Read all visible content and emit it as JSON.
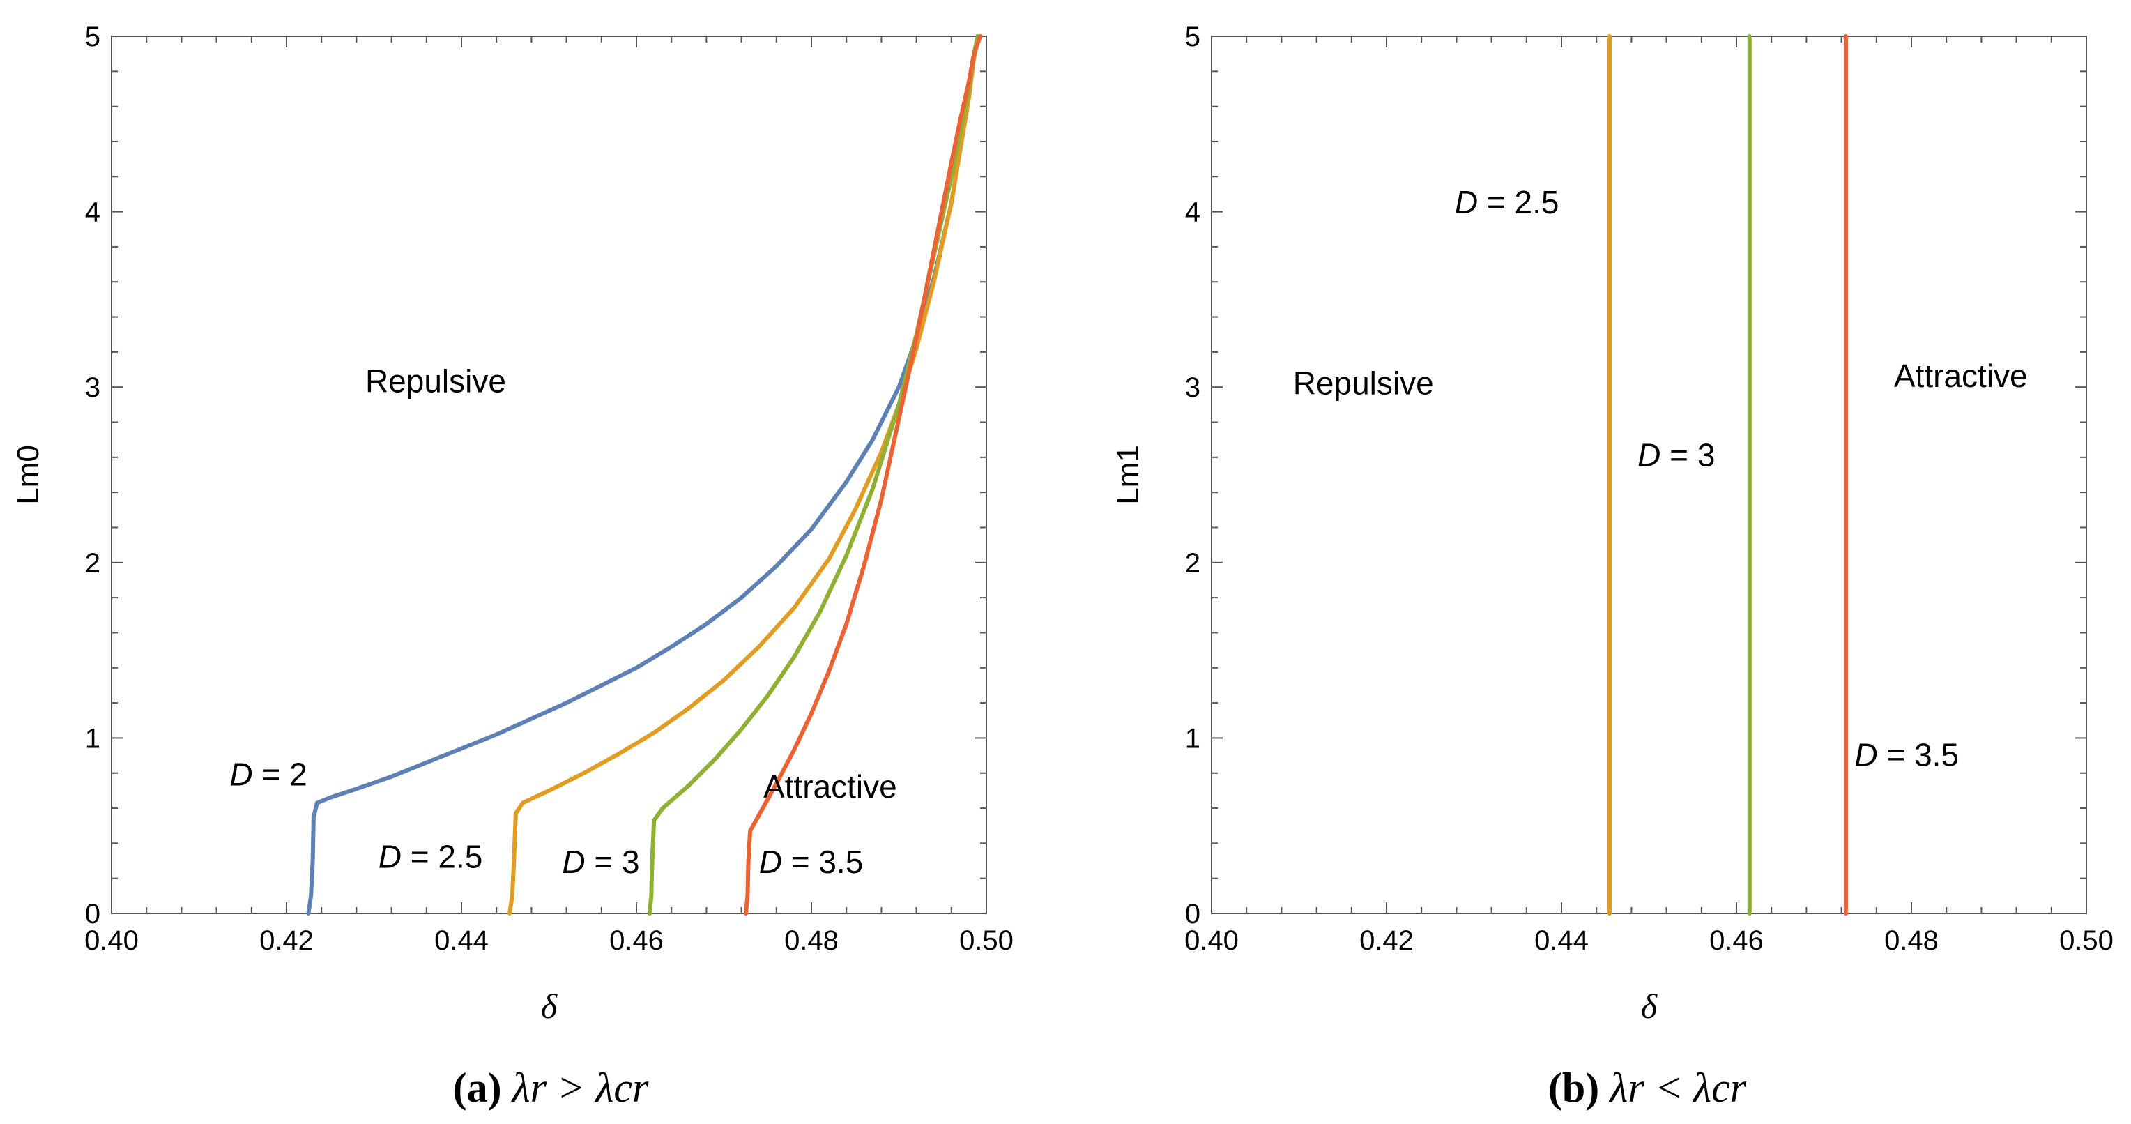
{
  "chart_data": [
    {
      "type": "line",
      "panel_id": "a",
      "caption": {
        "letter": "(a)",
        "formula": "λr > λcr"
      },
      "xlabel": "δ",
      "ylabel": "Lm0",
      "xlim": [
        0.4,
        0.5
      ],
      "ylim": [
        0,
        5
      ],
      "xticks": [
        0.4,
        0.42,
        0.44,
        0.46,
        0.48,
        0.5
      ],
      "xtick_labels": [
        "0.40",
        "0.42",
        "0.44",
        "0.46",
        "0.48",
        "0.50"
      ],
      "yticks": [
        0,
        1,
        2,
        3,
        4,
        5
      ],
      "ytick_labels": [
        "0",
        "1",
        "2",
        "3",
        "4",
        "5"
      ],
      "series": [
        {
          "name": "D = 2",
          "color": "#5e81b5",
          "x": [
            0.4225,
            0.4228,
            0.423,
            0.4231,
            0.4235,
            0.425,
            0.428,
            0.432,
            0.436,
            0.44,
            0.444,
            0.448,
            0.452,
            0.456,
            0.46,
            0.464,
            0.468,
            0.472,
            0.476,
            0.48,
            0.484,
            0.487,
            0.49,
            0.492,
            0.494,
            0.496,
            0.497,
            0.498,
            0.4985,
            0.499
          ],
          "y": [
            0.0,
            0.1,
            0.3,
            0.55,
            0.63,
            0.66,
            0.71,
            0.78,
            0.86,
            0.94,
            1.02,
            1.11,
            1.2,
            1.3,
            1.4,
            1.52,
            1.65,
            1.8,
            1.98,
            2.19,
            2.46,
            2.7,
            3.0,
            3.28,
            3.62,
            4.05,
            4.35,
            4.65,
            4.85,
            5.0
          ]
        },
        {
          "name": "D = 2.5",
          "color": "#e19c24",
          "x": [
            0.4455,
            0.4458,
            0.446,
            0.4462,
            0.447,
            0.45,
            0.454,
            0.458,
            0.462,
            0.466,
            0.47,
            0.474,
            0.478,
            0.482,
            0.485,
            0.488,
            0.49,
            0.492,
            0.494,
            0.496,
            0.497,
            0.498,
            0.4985,
            0.499
          ],
          "y": [
            0.0,
            0.1,
            0.3,
            0.57,
            0.63,
            0.7,
            0.8,
            0.91,
            1.03,
            1.17,
            1.33,
            1.52,
            1.74,
            2.02,
            2.3,
            2.63,
            2.9,
            3.22,
            3.6,
            4.05,
            4.35,
            4.65,
            4.85,
            5.0
          ]
        },
        {
          "name": "D = 3",
          "color": "#8fb032",
          "x": [
            0.4615,
            0.4617,
            0.4618,
            0.462,
            0.463,
            0.466,
            0.469,
            0.472,
            0.475,
            0.478,
            0.481,
            0.484,
            0.487,
            0.49,
            0.492,
            0.494,
            0.496,
            0.497,
            0.498,
            0.4985,
            0.499
          ],
          "y": [
            0.0,
            0.1,
            0.3,
            0.53,
            0.6,
            0.73,
            0.88,
            1.05,
            1.24,
            1.46,
            1.72,
            2.04,
            2.42,
            2.9,
            3.3,
            3.75,
            4.2,
            4.45,
            4.7,
            4.88,
            5.0
          ]
        },
        {
          "name": "D = 3.5",
          "color": "#eb6235",
          "x": [
            0.4725,
            0.4727,
            0.4728,
            0.473,
            0.474,
            0.476,
            0.478,
            0.48,
            0.482,
            0.484,
            0.486,
            0.488,
            0.49,
            0.492,
            0.494,
            0.496,
            0.497,
            0.498,
            0.4985,
            0.499,
            0.4993
          ],
          "y": [
            0.0,
            0.1,
            0.3,
            0.47,
            0.56,
            0.74,
            0.93,
            1.14,
            1.38,
            1.65,
            1.98,
            2.36,
            2.82,
            3.28,
            3.78,
            4.28,
            4.52,
            4.74,
            4.88,
            4.96,
            5.0
          ]
        }
      ],
      "annotations": [
        {
          "text_prefix": "D",
          "text_suffix": " = 2",
          "x": 0.4135,
          "y": 0.73
        },
        {
          "text_prefix": "D",
          "text_suffix": " = 2.5",
          "x": 0.4305,
          "y": 0.26
        },
        {
          "text_prefix": "D",
          "text_suffix": " = 3",
          "x": 0.4515,
          "y": 0.23
        },
        {
          "text_prefix": "D",
          "text_suffix": " = 3.5",
          "x": 0.474,
          "y": 0.23
        },
        {
          "text_prefix": "",
          "text_suffix": "Repulsive",
          "x": 0.429,
          "y": 2.97
        },
        {
          "text_prefix": "",
          "text_suffix": "Attractive",
          "x": 0.4745,
          "y": 0.66
        }
      ]
    },
    {
      "type": "line",
      "panel_id": "b",
      "caption": {
        "letter": "(b)",
        "formula": "λr < λcr"
      },
      "xlabel": "δ",
      "ylabel": "Lm1",
      "xlim": [
        0.4,
        0.5
      ],
      "ylim": [
        0,
        5
      ],
      "xticks": [
        0.4,
        0.42,
        0.44,
        0.46,
        0.48,
        0.5
      ],
      "xtick_labels": [
        "0.40",
        "0.42",
        "0.44",
        "0.46",
        "0.48",
        "0.50"
      ],
      "yticks": [
        0,
        1,
        2,
        3,
        4,
        5
      ],
      "ytick_labels": [
        "0",
        "1",
        "2",
        "3",
        "4",
        "5"
      ],
      "series": [
        {
          "name": "D = 2.5",
          "color": "#e19c24",
          "x": [
            0.4455,
            0.4455
          ],
          "y": [
            0,
            5
          ]
        },
        {
          "name": "D = 3",
          "color": "#8fb032",
          "x": [
            0.4615,
            0.4615
          ],
          "y": [
            0,
            5
          ]
        },
        {
          "name": "D = 3.5",
          "color": "#eb6235",
          "x": [
            0.4725,
            0.4725
          ],
          "y": [
            0,
            5
          ]
        }
      ],
      "annotations": [
        {
          "text_prefix": "D",
          "text_suffix": " = 2.5",
          "x": 0.4278,
          "y": 3.99
        },
        {
          "text_prefix": "D",
          "text_suffix": " = 3",
          "x": 0.4487,
          "y": 2.55
        },
        {
          "text_prefix": "D",
          "text_suffix": " = 3.5",
          "x": 0.4735,
          "y": 0.84
        },
        {
          "text_prefix": "",
          "text_suffix": "Repulsive",
          "x": 0.4093,
          "y": 2.96
        },
        {
          "text_prefix": "",
          "text_suffix": "Attractive",
          "x": 0.478,
          "y": 3.0
        }
      ]
    }
  ]
}
